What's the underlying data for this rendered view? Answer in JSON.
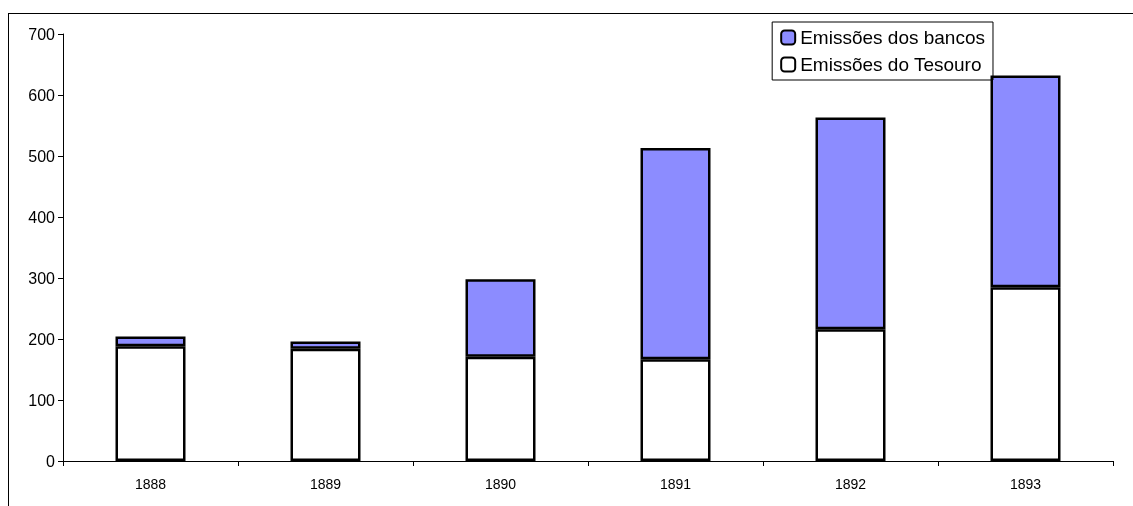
{
  "chart_data": {
    "type": "bar",
    "stacked": true,
    "categories": [
      "1888",
      "1889",
      "1890",
      "1891",
      "1892",
      "1893"
    ],
    "series": [
      {
        "name": "Emissões do Tesouro",
        "color": "#ffffff",
        "values": [
          188,
          184,
          171,
          167,
          216,
          285
        ]
      },
      {
        "name": "Emissões dos bancos",
        "color": "#8c8cff",
        "values": [
          16,
          12,
          127,
          346,
          347,
          347
        ]
      }
    ],
    "ylim": [
      0,
      700
    ],
    "yticks": [
      0,
      100,
      200,
      300,
      400,
      500,
      600,
      700
    ],
    "grid": false,
    "legend": "top right"
  }
}
